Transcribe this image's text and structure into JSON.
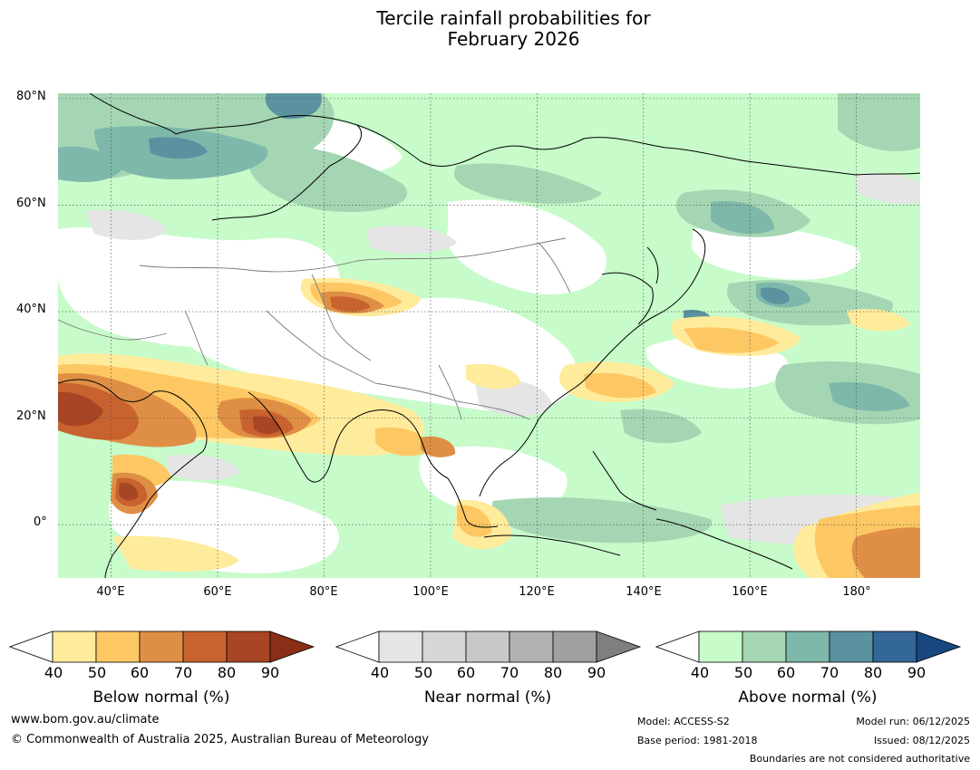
{
  "title_line1": "Tercile rainfall probabilities for",
  "title_line2": "February 2026",
  "map": {
    "lat_labels": [
      "80°N",
      "60°N",
      "40°N",
      "20°N",
      "0°"
    ],
    "lon_labels": [
      "40°E",
      "60°E",
      "80°E",
      "100°E",
      "120°E",
      "140°E",
      "160°E",
      "180°"
    ],
    "extent": {
      "lon_min": 30,
      "lon_max": 192,
      "lat_min": -10,
      "lat_max": 81
    }
  },
  "legends": {
    "below": {
      "label": "Below normal (%)",
      "ticks": [
        "40",
        "50",
        "60",
        "70",
        "80",
        "90"
      ],
      "colors": [
        "#ffffff",
        "#ffeb9c",
        "#fdc863",
        "#df8f45",
        "#c8632f",
        "#a84525",
        "#8b2e18"
      ]
    },
    "near": {
      "label": "Near normal (%)",
      "ticks": [
        "40",
        "50",
        "60",
        "70",
        "80",
        "90"
      ],
      "colors": [
        "#ffffff",
        "#e5e5e5",
        "#d6d6d6",
        "#c8c8c8",
        "#b2b2b2",
        "#a0a0a0",
        "#7f7f7f"
      ]
    },
    "above": {
      "label": "Above normal (%)",
      "ticks": [
        "40",
        "50",
        "60",
        "70",
        "80",
        "90"
      ],
      "colors": [
        "#ffffff",
        "#c7fbca",
        "#a5d6b3",
        "#7db8aa",
        "#5a939f",
        "#336699",
        "#18487f"
      ]
    }
  },
  "footer": {
    "website": "www.bom.gov.au/climate",
    "copyright": "© Commonwealth of Australia 2025, Australian Bureau of Meteorology",
    "model": "Model: ACCESS-S2",
    "base_period": "Base period: 1981-2018",
    "model_run": "Model run: 06/12/2025",
    "issued": "Issued: 08/12/2025",
    "boundaries_note": "Boundaries are not considered authoritative"
  }
}
